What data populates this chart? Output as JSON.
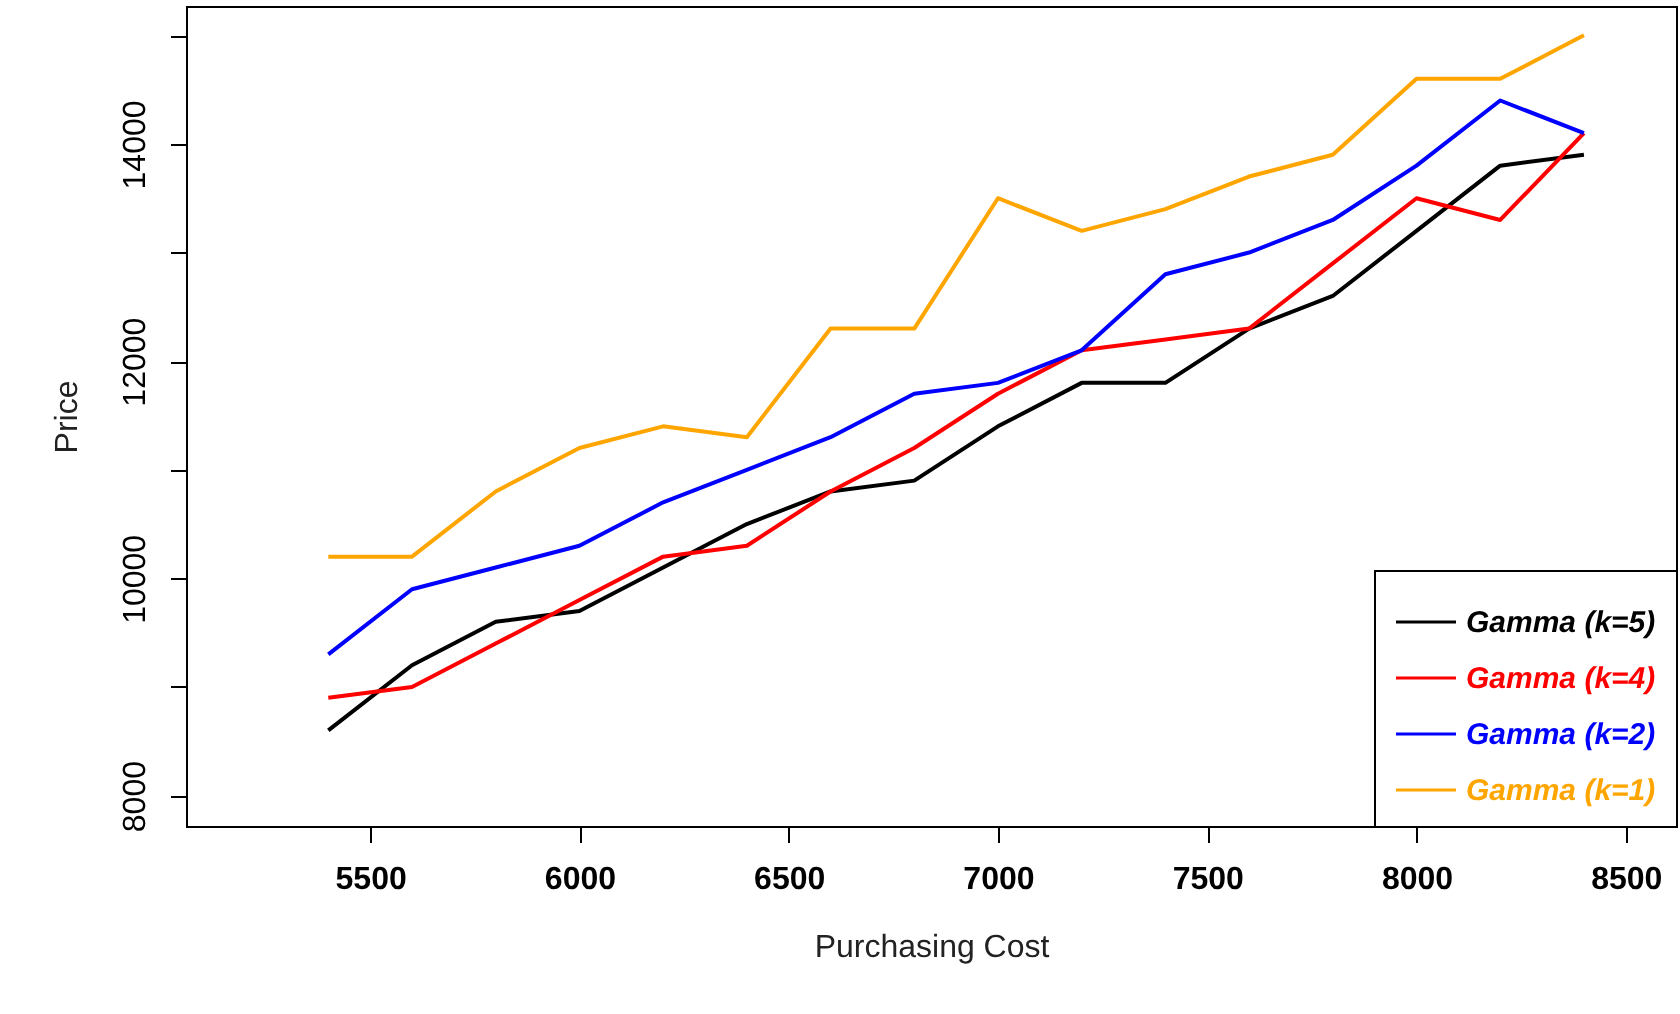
{
  "chart_data": {
    "type": "line",
    "xlabel": "Purchasing Cost",
    "ylabel": "Price",
    "x": [
      5400,
      5600,
      5800,
      6000,
      6200,
      6400,
      6600,
      6800,
      7000,
      7200,
      7400,
      7600,
      7800,
      8000,
      8200,
      8400
    ],
    "series": [
      {
        "name": "Gamma (k=5)",
        "color": "#000000",
        "values": [
          8600,
          9200,
          9600,
          9700,
          10100,
          10500,
          10800,
          10900,
          11400,
          11800,
          11800,
          12300,
          12600,
          13200,
          13800,
          13900
        ]
      },
      {
        "name": "Gamma (k=4)",
        "color": "#ff0000",
        "values": [
          8900,
          9000,
          9400,
          9800,
          10200,
          10300,
          10800,
          11200,
          11700,
          12100,
          12200,
          12300,
          12900,
          13500,
          13300,
          14100
        ]
      },
      {
        "name": "Gamma (k=2)",
        "color": "#0000ff",
        "values": [
          9300,
          9900,
          10100,
          10300,
          10700,
          11000,
          11300,
          11700,
          11800,
          12100,
          12800,
          13000,
          13300,
          13800,
          14400,
          14100
        ]
      },
      {
        "name": "Gamma (k=1)",
        "color": "#ffa500",
        "values": [
          10200,
          10200,
          10800,
          11200,
          11400,
          11300,
          12300,
          12300,
          13500,
          13200,
          13400,
          13700,
          13900,
          14600,
          14600,
          15000
        ]
      }
    ],
    "xlim": [
      5060,
      8620
    ],
    "xticks": [
      5500,
      6000,
      6500,
      7000,
      7500,
      8000,
      8500
    ],
    "ylim": [
      7720,
      15270
    ],
    "yticks": [
      8000,
      {
        "value": 9000,
        "label": null
      },
      10000,
      {
        "value": 11000,
        "label": null
      },
      12000,
      {
        "value": 13000,
        "label": null
      },
      14000,
      {
        "value": 15000,
        "label": null
      }
    ],
    "grid": false,
    "legend": "bottom right",
    "marker": "none",
    "line_style": "solid"
  }
}
